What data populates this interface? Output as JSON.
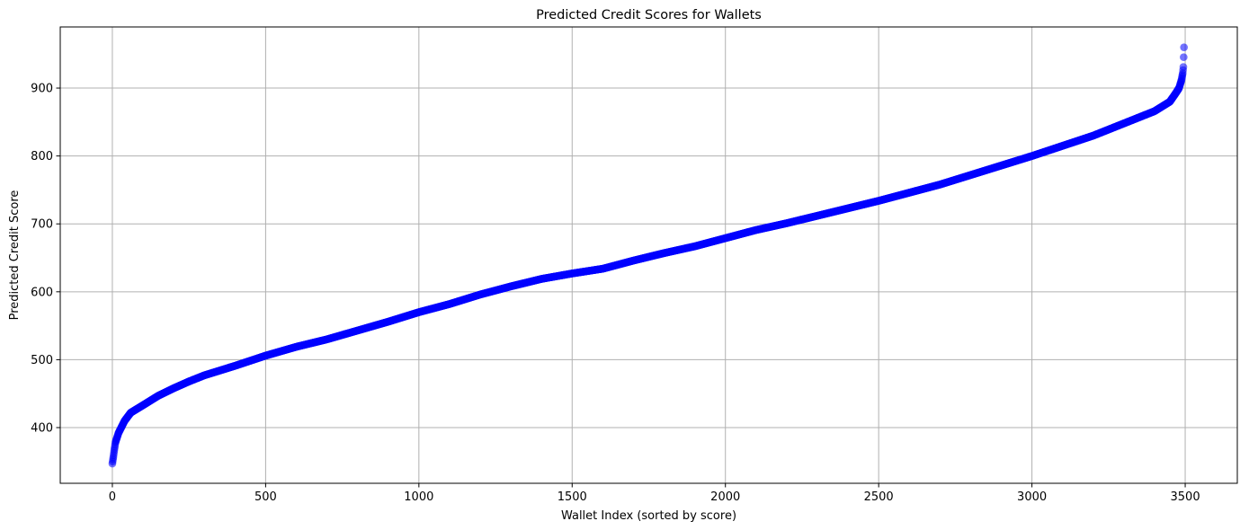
{
  "chart_data": {
    "type": "scatter",
    "title": "Predicted Credit Scores for Wallets",
    "xlabel": "Wallet Index (sorted by score)",
    "ylabel": "Predicted Credit Score",
    "xlim": [
      -170,
      3670
    ],
    "ylim": [
      318,
      990
    ],
    "xticks": [
      0,
      500,
      1000,
      1500,
      2000,
      2500,
      3000,
      3500
    ],
    "yticks": [
      400,
      500,
      600,
      700,
      800,
      900
    ],
    "grid": true,
    "point_color": "#0000ff",
    "point_alpha": 0.55,
    "n_points": 3497,
    "x": [
      0,
      3,
      6,
      10,
      20,
      40,
      60,
      100,
      150,
      200,
      250,
      300,
      400,
      500,
      600,
      700,
      800,
      900,
      1000,
      1100,
      1200,
      1300,
      1400,
      1500,
      1600,
      1700,
      1800,
      1900,
      2000,
      2100,
      2200,
      2300,
      2400,
      2500,
      2600,
      2700,
      2800,
      2900,
      3000,
      3100,
      3200,
      3300,
      3400,
      3450,
      3470,
      3480,
      3488,
      3492,
      3494,
      3496
    ],
    "y": [
      347,
      356,
      366,
      378,
      392,
      410,
      422,
      433,
      447,
      458,
      468,
      477,
      491,
      506,
      519,
      530,
      543,
      556,
      570,
      582,
      596,
      608,
      619,
      627,
      634,
      646,
      657,
      667,
      679,
      691,
      701,
      712,
      723,
      734,
      746,
      758,
      772,
      786,
      800,
      815,
      830,
      848,
      866,
      880,
      893,
      900,
      912,
      922,
      931,
      960
    ]
  }
}
